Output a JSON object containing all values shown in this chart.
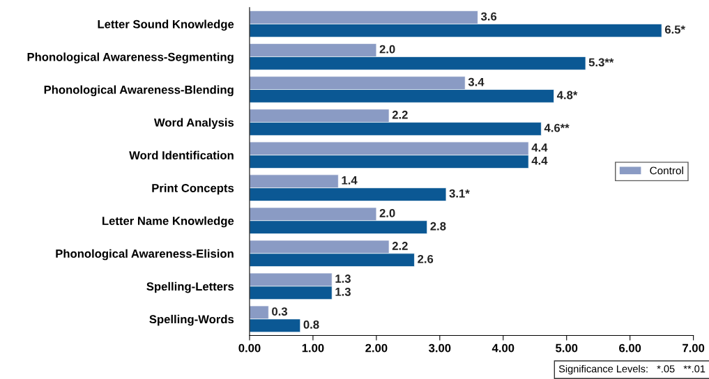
{
  "chart_data": {
    "type": "bar",
    "orientation": "horizontal",
    "categories": [
      "Letter Sound Knowledge",
      "Phonological Awareness-Segmenting",
      "Phonological Awareness-Blending",
      "Word Analysis",
      "Word Identification",
      "Print Concepts",
      "Letter Name Knowledge",
      "Phonological Awareness-Elision",
      "Spelling-Letters",
      "Spelling-Words"
    ],
    "series": [
      {
        "name": "Control",
        "color": "#8a9bc4",
        "values": [
          3.6,
          2.0,
          3.4,
          2.2,
          4.4,
          1.4,
          2.0,
          2.2,
          1.3,
          0.3
        ],
        "value_labels": [
          "3.6",
          "2.0",
          "3.4",
          "2.2",
          "4.4",
          "1.4",
          "2.0",
          "2.2",
          "1.3",
          "0.3"
        ]
      },
      {
        "color": "#0b5894",
        "values": [
          6.5,
          5.3,
          4.8,
          4.6,
          4.4,
          3.1,
          2.8,
          2.6,
          1.3,
          0.8
        ],
        "value_labels": [
          "6.5*",
          "5.3**",
          "4.8*",
          "4.6**",
          "4.4",
          "3.1*",
          "2.8",
          "2.6",
          "1.3",
          "0.8"
        ]
      }
    ],
    "xlim": [
      0,
      7
    ],
    "xticks": [
      {
        "value": 0,
        "label": "0.00"
      },
      {
        "value": 1,
        "label": "1.00"
      },
      {
        "value": 2,
        "label": "2.00"
      },
      {
        "value": 3,
        "label": "3.00"
      },
      {
        "value": 4,
        "label": "4.00"
      },
      {
        "value": 5,
        "label": "5.00"
      },
      {
        "value": 6,
        "label": "6.00"
      },
      {
        "value": 7,
        "label": "7.00"
      }
    ],
    "grid": false,
    "legend": "right",
    "annotations": [
      "Significance Levels:   *.05   **.01"
    ]
  }
}
